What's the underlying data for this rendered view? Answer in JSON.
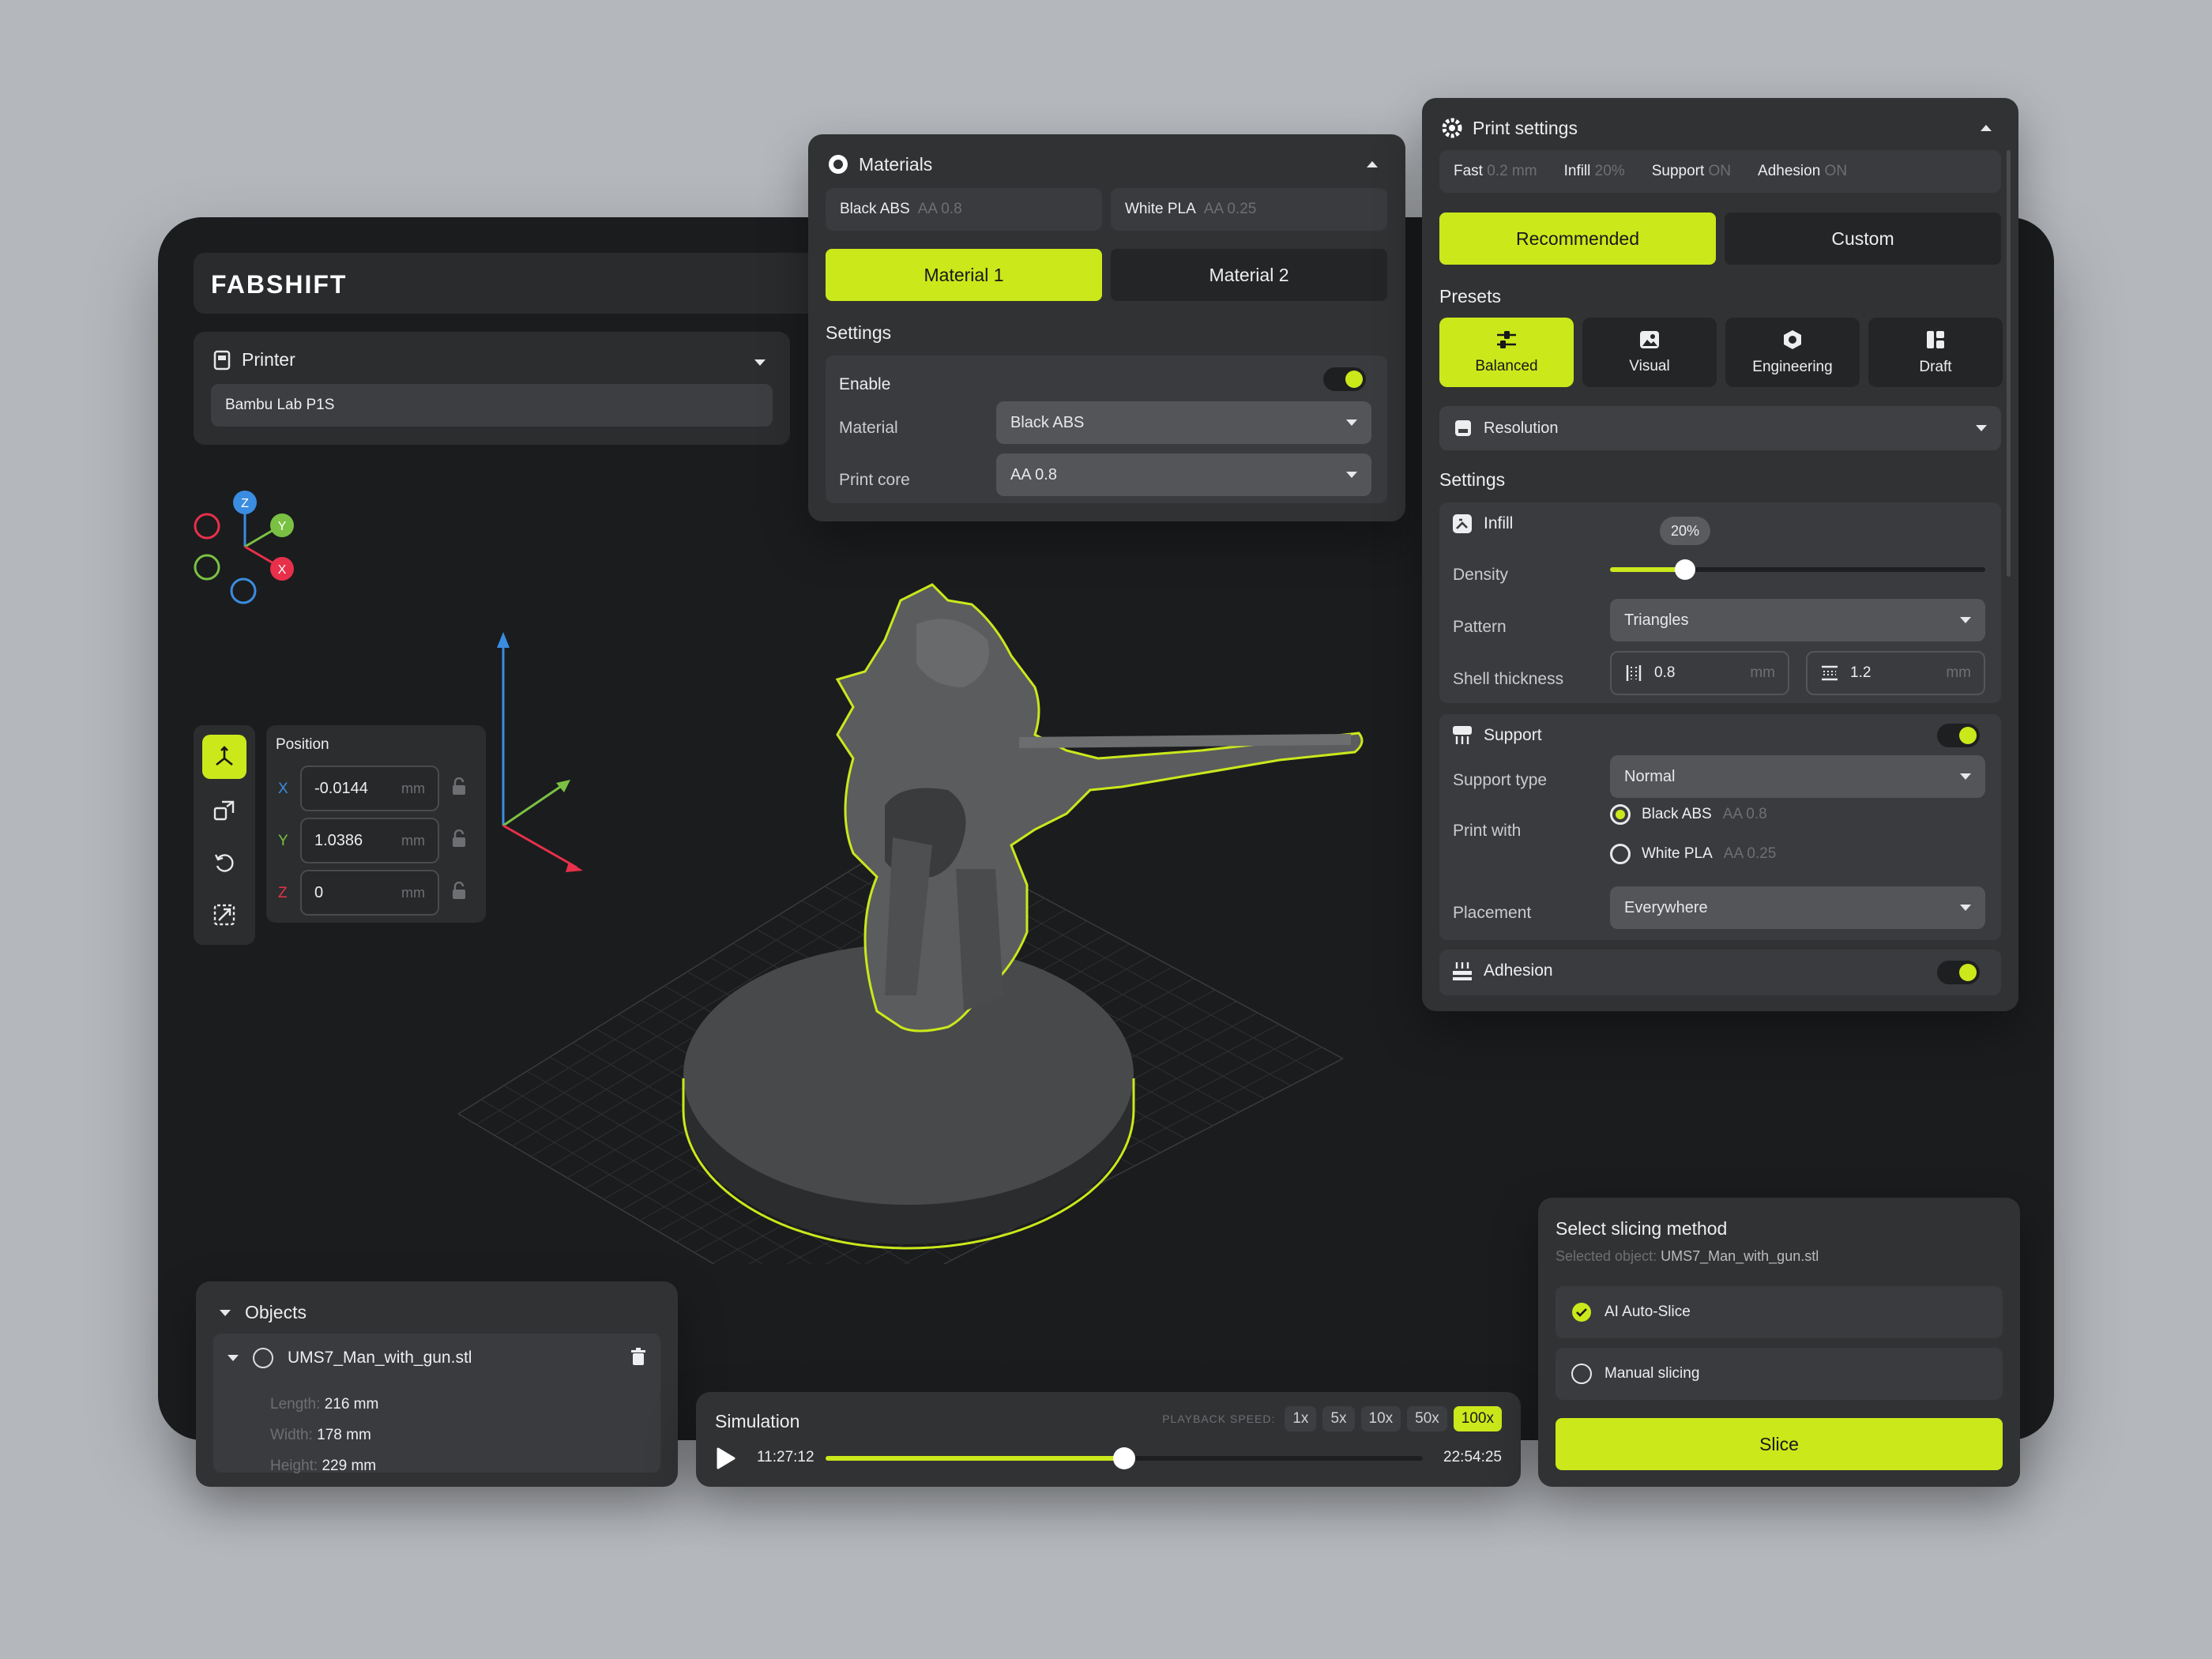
{
  "brand": {
    "logo": "FABSHIFT"
  },
  "printer": {
    "title": "Printer",
    "value": "Bambu Lab P1S"
  },
  "axes_gizmo": {
    "z": "Z",
    "y": "Y",
    "x": "X"
  },
  "position": {
    "title": "Position",
    "x_label": "X",
    "x_value": "-0.0144",
    "y_label": "Y",
    "y_value": "1.0386",
    "z_label": "Z",
    "z_value": "0",
    "unit": "mm"
  },
  "materials": {
    "title": "Materials",
    "chips": [
      {
        "name": "Black ABS",
        "core": "AA 0.8"
      },
      {
        "name": "White PLA",
        "core": "AA 0.25"
      }
    ],
    "tabs": [
      "Material 1",
      "Material 2"
    ],
    "settings_title": "Settings",
    "enable_label": "Enable",
    "material_label": "Material",
    "material_value": "Black ABS",
    "core_label": "Print core",
    "core_value": "AA 0.8"
  },
  "print_settings": {
    "title": "Print settings",
    "summary": [
      {
        "k": "Fast",
        "v": "0.2 mm"
      },
      {
        "k": "Infill",
        "v": "20%"
      },
      {
        "k": "Support",
        "v": "ON"
      },
      {
        "k": "Adhesion",
        "v": "ON"
      }
    ],
    "modes": [
      "Recommended",
      "Custom"
    ],
    "presets_title": "Presets",
    "presets": [
      "Balanced",
      "Visual",
      "Engineering",
      "Draft"
    ],
    "resolution": "Resolution",
    "settings_title": "Settings",
    "infill": {
      "title": "Infill",
      "density_label": "Density",
      "density_value": "20%",
      "density_fraction": 0.2,
      "pattern_label": "Pattern",
      "pattern_value": "Triangles",
      "shell_label": "Shell thickness",
      "shell_a": "0.8",
      "shell_b": "1.2",
      "unit": "mm"
    },
    "support": {
      "title": "Support",
      "type_label": "Support type",
      "type_value": "Normal",
      "print_with_label": "Print with",
      "options": [
        {
          "name": "Black ABS",
          "core": "AA 0.8"
        },
        {
          "name": "White PLA",
          "core": "AA 0.25"
        }
      ],
      "placement_label": "Placement",
      "placement_value": "Everywhere"
    },
    "adhesion": {
      "title": "Adhesion"
    }
  },
  "objects": {
    "title": "Objects",
    "file": "UMS7_Man_with_gun.stl",
    "dims": [
      {
        "k": "Length:",
        "v": "216 mm"
      },
      {
        "k": "Width:",
        "v": "178 mm"
      },
      {
        "k": "Height:",
        "v": "229 mm"
      }
    ]
  },
  "simulation": {
    "title": "Simulation",
    "playback_label": "PLAYBACK SPEED:",
    "speeds": [
      "1x",
      "5x",
      "10x",
      "50x",
      "100x"
    ],
    "current": "11:27:12",
    "total": "22:54:25",
    "progress_fraction": 0.5
  },
  "slicing": {
    "title": "Select slicing method",
    "selected_label": "Selected object:",
    "selected_value": "UMS7_Man_with_gun.stl",
    "options": [
      "AI Auto-Slice",
      "Manual slicing"
    ],
    "slice_button": "Slice"
  },
  "colors": {
    "accent": "#cbe81b",
    "bg": "#b4b7bc",
    "device": "#1b1c1e",
    "panel": "#313234",
    "axis_x": "#e8304a",
    "axis_y": "#7ac143",
    "axis_z": "#3a8de0"
  }
}
